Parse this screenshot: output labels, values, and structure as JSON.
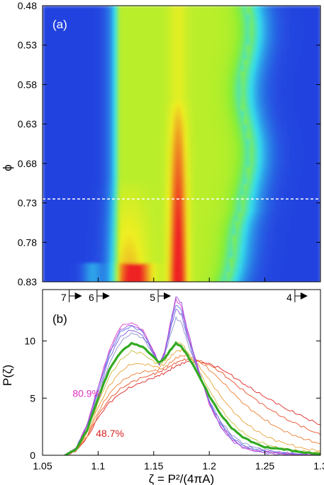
{
  "chart_data": [
    {
      "type": "heatmap",
      "panel_label": "(a)",
      "ylabel": "ϕ",
      "ylim": [
        0.48,
        0.83
      ],
      "y_ticks": [
        "0.48",
        "0.53",
        "0.58",
        "0.63",
        "0.68",
        "0.73",
        "0.78",
        "0.83"
      ],
      "y_inverted": true,
      "xlim": [
        1.05,
        1.3
      ],
      "colormap": [
        "#2443e0",
        "#33ddee",
        "#88ee33",
        "#eeee22",
        "#ee2222"
      ],
      "reference_line": {
        "y": 0.725,
        "style": "white dashed"
      },
      "ridges": [
        {
          "center": 1.128,
          "phi_start": 0.7,
          "label": "left peak"
        },
        {
          "center": 1.172,
          "phi_start": 0.6,
          "label": "central peak"
        }
      ]
    },
    {
      "type": "line",
      "panel_label": "(b)",
      "xlabel": "ζ = P²/(4πA)",
      "ylabel": "P(ζ)",
      "xlim": [
        1.05,
        1.3
      ],
      "ylim": [
        0,
        14.5
      ],
      "x_ticks": [
        "1.05",
        "1.1",
        "1.15",
        "1.2",
        "1.25",
        "1.3"
      ],
      "y_ticks": [
        "0",
        "5",
        "10"
      ],
      "top_markers": [
        {
          "label": "7",
          "x": 1.074
        },
        {
          "label": "6",
          "x": 1.099
        },
        {
          "label": "5",
          "x": 1.154
        },
        {
          "label": "4",
          "x": 1.277
        }
      ],
      "annotations": [
        {
          "text": "80.9%",
          "color": "#e030c0",
          "x": 1.077,
          "y": 5.1
        },
        {
          "text": "48.7%",
          "color": "#dd2222",
          "x": 1.098,
          "y": 1.6
        }
      ],
      "x": [
        1.07,
        1.08,
        1.09,
        1.1,
        1.11,
        1.12,
        1.13,
        1.14,
        1.15,
        1.155,
        1.16,
        1.165,
        1.17,
        1.175,
        1.18,
        1.19,
        1.2,
        1.21,
        1.22,
        1.23,
        1.24,
        1.25,
        1.26,
        1.27,
        1.28,
        1.29,
        1.3
      ],
      "highlight": {
        "color": "#33aa22",
        "values": [
          0,
          0.5,
          2.2,
          5.0,
          7.5,
          9.0,
          9.8,
          9.5,
          8.6,
          8.1,
          8.5,
          9.2,
          9.8,
          9.5,
          8.8,
          7.1,
          5.2,
          3.6,
          2.4,
          1.6,
          1.1,
          0.7,
          0.6,
          0.5,
          0.3,
          0.2,
          0.1
        ]
      },
      "family": [
        {
          "color": "#dd2222",
          "values": [
            0,
            0.4,
            1.5,
            3.3,
            4.6,
            5.4,
            6.0,
            6.4,
            6.8,
            7.0,
            7.2,
            7.5,
            7.8,
            8.0,
            8.2,
            8.2,
            8.0,
            7.6,
            7.0,
            6.3,
            5.7,
            5.1,
            4.6,
            4.0,
            3.6,
            3.1,
            2.7
          ]
        },
        {
          "color": "#e8502a",
          "values": [
            0,
            0.4,
            1.6,
            3.5,
            4.9,
            5.8,
            6.4,
            6.8,
            7.1,
            7.3,
            7.5,
            7.8,
            8.1,
            8.3,
            8.4,
            8.3,
            7.9,
            7.3,
            6.5,
            5.7,
            5.0,
            4.3,
            3.7,
            3.1,
            2.7,
            2.2,
            1.8
          ]
        },
        {
          "color": "#ee7d32",
          "values": [
            0,
            0.4,
            1.7,
            3.8,
            5.4,
            6.4,
            7.0,
            7.3,
            7.4,
            7.5,
            7.7,
            8.1,
            8.5,
            8.7,
            8.7,
            8.3,
            7.5,
            6.6,
            5.6,
            4.6,
            3.8,
            3.1,
            2.5,
            2.0,
            1.6,
            1.3,
            1.0
          ]
        },
        {
          "color": "#e9a23a",
          "values": [
            0,
            0.5,
            1.9,
            4.2,
            6.1,
            7.3,
            8.0,
            8.0,
            7.8,
            7.7,
            8.0,
            8.6,
            9.1,
            9.2,
            8.9,
            7.9,
            6.6,
            5.2,
            4.0,
            3.0,
            2.3,
            1.7,
            1.3,
            1.0,
            0.7,
            0.5,
            0.4
          ]
        },
        {
          "color": "#c9ba3c",
          "values": [
            0,
            0.5,
            2.1,
            4.6,
            6.9,
            8.3,
            9.1,
            8.9,
            8.2,
            7.9,
            8.3,
            9.1,
            9.8,
            9.8,
            9.1,
            7.5,
            5.7,
            4.1,
            2.9,
            2.0,
            1.4,
            1.0,
            0.7,
            0.5,
            0.4,
            0.3,
            0.2
          ]
        },
        {
          "color": "#8a8fd0",
          "values": [
            0,
            0.5,
            2.3,
            5.2,
            8.0,
            9.9,
            10.7,
            10.3,
            8.8,
            8.0,
            8.8,
            10.5,
            12.0,
            11.6,
            10.0,
            7.3,
            4.8,
            3.0,
            1.8,
            1.1,
            0.7,
            0.5,
            0.3,
            0.2,
            0.1,
            0.1,
            0.05
          ]
        },
        {
          "color": "#7a5ee0",
          "values": [
            0,
            0.6,
            2.5,
            5.5,
            8.5,
            10.4,
            11.0,
            10.5,
            8.9,
            8.0,
            8.9,
            11.0,
            12.8,
            12.3,
            10.4,
            7.4,
            4.7,
            2.9,
            1.6,
            0.9,
            0.6,
            0.4,
            0.3,
            0.2,
            0.1,
            0.1,
            0.05
          ]
        },
        {
          "color": "#5a7ae8",
          "values": [
            0,
            0.6,
            2.6,
            5.8,
            8.8,
            10.8,
            11.3,
            10.8,
            9.0,
            8.0,
            9.0,
            11.3,
            13.2,
            12.7,
            10.7,
            7.5,
            4.6,
            2.7,
            1.5,
            0.8,
            0.5,
            0.3,
            0.2,
            0.1,
            0.1,
            0.05,
            0.05
          ]
        },
        {
          "color": "#e040c8",
          "values": [
            0,
            0.6,
            2.7,
            6.0,
            9.2,
            11.3,
            11.6,
            11.0,
            9.1,
            8.0,
            9.1,
            11.6,
            13.6,
            13.0,
            10.9,
            7.5,
            4.5,
            2.6,
            1.4,
            0.7,
            0.4,
            0.3,
            0.2,
            0.1,
            0.05,
            0.05,
            0
          ]
        },
        {
          "color": "#9a50e0",
          "values": [
            0,
            0.6,
            2.6,
            5.9,
            9.0,
            11.0,
            11.4,
            10.9,
            9.0,
            8.0,
            9.0,
            11.5,
            13.9,
            13.3,
            11.1,
            7.6,
            4.5,
            2.5,
            1.3,
            0.7,
            0.4,
            0.2,
            0.1,
            0.1,
            0.05,
            0,
            0
          ]
        }
      ]
    }
  ]
}
